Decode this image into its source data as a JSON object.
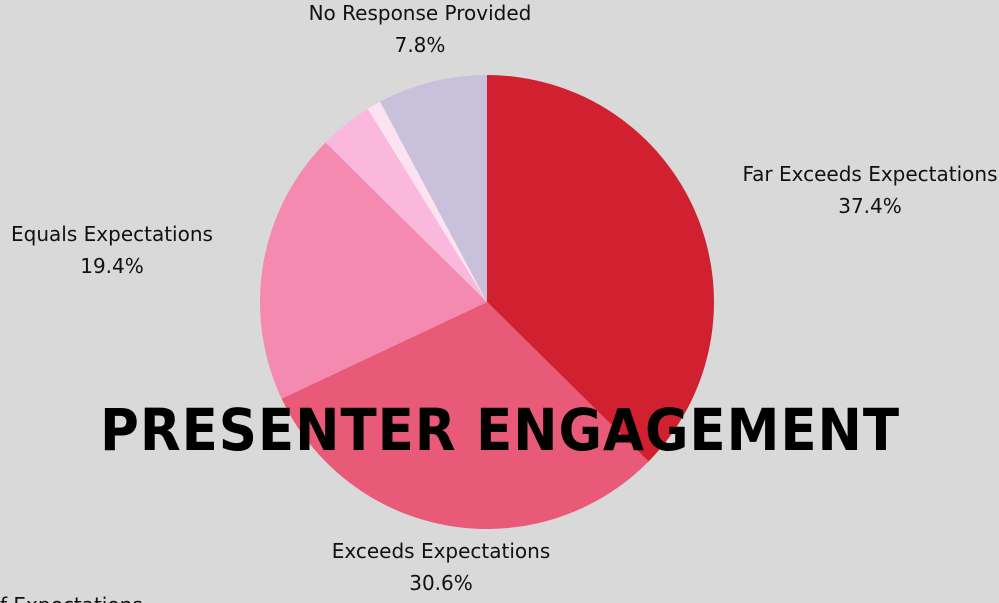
{
  "chart_data": {
    "type": "pie",
    "title": "PRESENTER ENGAGEMENT",
    "categories": [
      "Far Exceeds Expectations",
      "Exceeds Expectations",
      "Equals Expectations",
      "f Expectations",
      null,
      "No Response Provided"
    ],
    "values": [
      37.4,
      30.6,
      19.4,
      3.8,
      1.0,
      7.8
    ],
    "value_labels": [
      "37.4%",
      "30.6%",
      "19.4%",
      null,
      null,
      "7.8%"
    ],
    "colors": [
      "#d12030",
      "#e85a78",
      "#f48aaf",
      "#f9b8dc",
      "#fde2f2",
      "#c9c0dc"
    ]
  }
}
